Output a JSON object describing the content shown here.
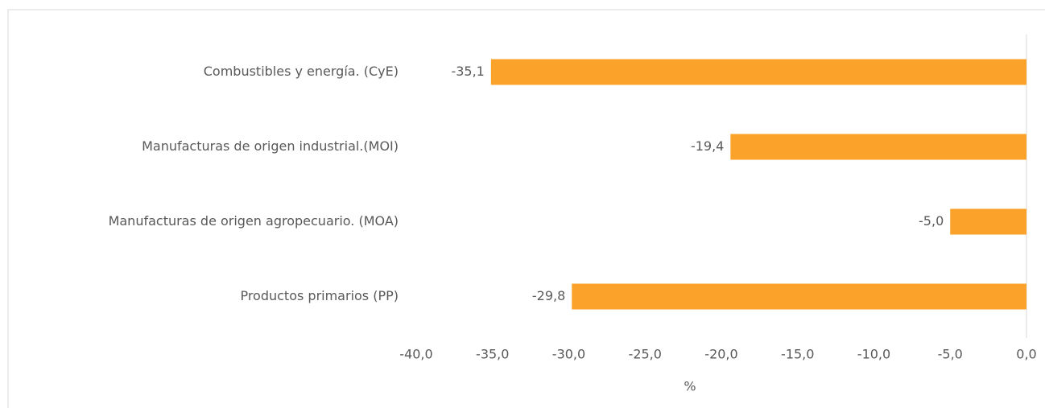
{
  "chart_data": {
    "type": "barh",
    "categories": [
      "Combustibles y energía. (CyE)",
      "Manufacturas de origen industrial.(MOI)",
      "Manufacturas de origen agropecuario. (MOA)",
      "Productos primarios (PP)"
    ],
    "values": [
      -35.1,
      -19.4,
      -5.0,
      -29.8
    ],
    "value_labels": [
      "-35,1",
      "-19,4",
      "-5,0",
      "-29,8"
    ],
    "color": "#fba22a",
    "xlabel": "%",
    "xlim": [
      -40,
      0
    ],
    "xticks": [
      {
        "value": -40,
        "label": "-40,0"
      },
      {
        "value": -35,
        "label": "-35,0"
      },
      {
        "value": -30,
        "label": "-30,0"
      },
      {
        "value": -25,
        "label": "-25,0"
      },
      {
        "value": -20,
        "label": "-20,0"
      },
      {
        "value": -15,
        "label": "-15,0"
      },
      {
        "value": -10,
        "label": "-10,0"
      },
      {
        "value": -5,
        "label": "-5,0"
      },
      {
        "value": 0,
        "label": "0,0"
      }
    ],
    "grid": false
  }
}
